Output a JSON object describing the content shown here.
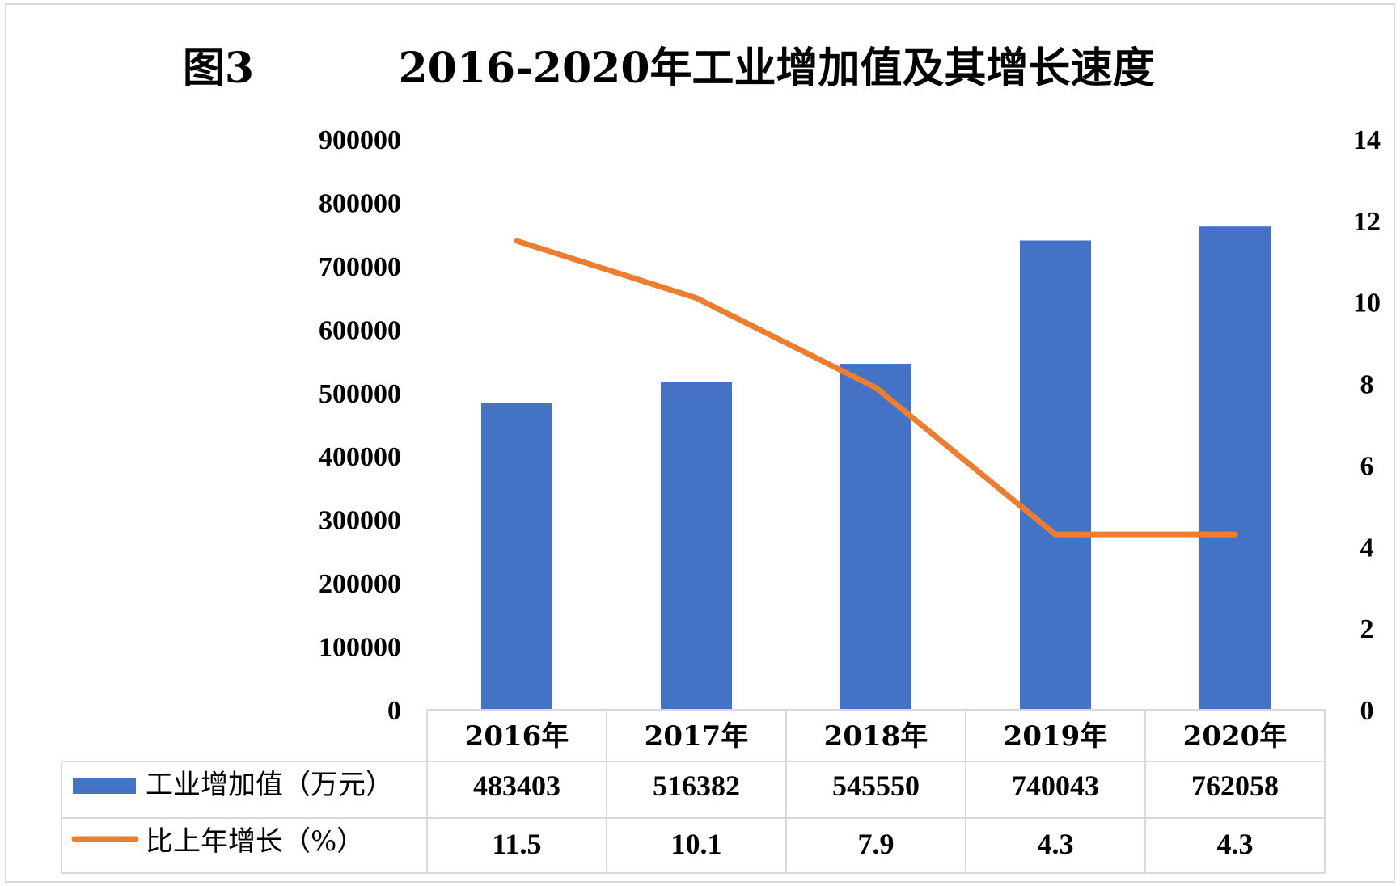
{
  "figure_label": "图3",
  "chart_data": {
    "type": "bar",
    "title": "2016-2020年工业增加值及其增长速度",
    "categories": [
      "2016年",
      "2017年",
      "2018年",
      "2019年",
      "2020年"
    ],
    "series": [
      {
        "name": "工业增加值（万元）",
        "type": "bar",
        "axis": "left",
        "color": "#4472c4",
        "values": [
          483403,
          516382,
          545550,
          740043,
          762058
        ]
      },
      {
        "name": "比上年增长（%）",
        "type": "line",
        "axis": "right",
        "color": "#ed7d31",
        "values": [
          11.5,
          10.1,
          7.9,
          4.3,
          4.3
        ]
      }
    ],
    "y_left": {
      "min": 0,
      "max": 900000,
      "ticks": [
        "0",
        "100000",
        "200000",
        "300000",
        "400000",
        "500000",
        "600000",
        "700000",
        "800000",
        "900000"
      ]
    },
    "y_right": {
      "min": 0,
      "max": 14,
      "ticks": [
        "0",
        "2",
        "4",
        "6",
        "8",
        "10",
        "12",
        "14"
      ]
    },
    "grid": false,
    "legend": "data-table"
  }
}
